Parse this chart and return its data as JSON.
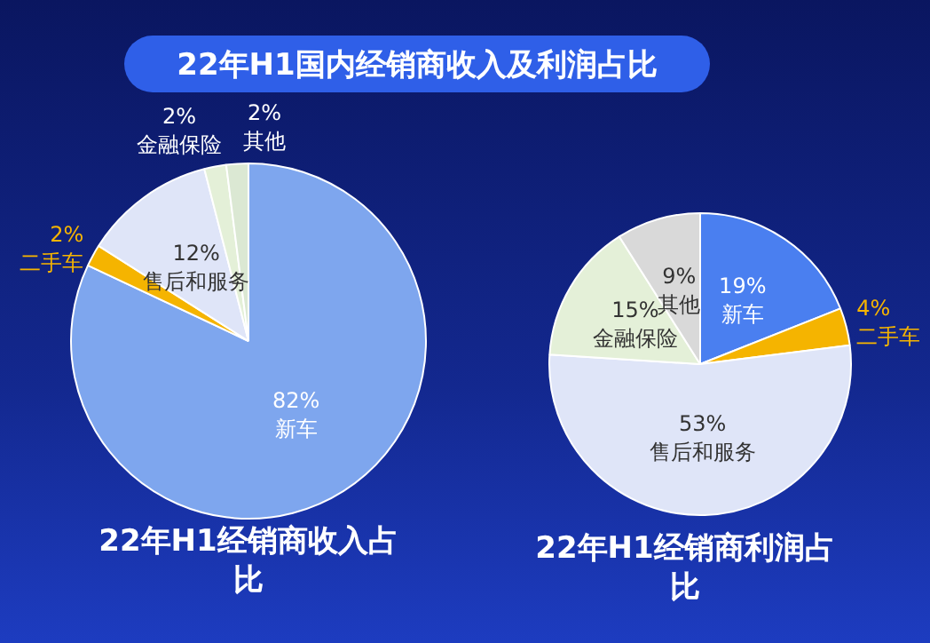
{
  "chart_data": [
    {
      "type": "other",
      "title": "22年H1国内经销商收入及利润占比"
    },
    {
      "type": "pie",
      "title": "22年H1经销商收入占比",
      "categories": [
        "新车",
        "二手车",
        "售后和服务",
        "金融保险",
        "其他"
      ],
      "values": [
        82,
        2,
        12,
        2,
        2
      ],
      "value_labels": [
        "82%",
        "2%",
        "12%",
        "2%",
        "2%"
      ],
      "colors": [
        "#7ea6ee",
        "#f5b400",
        "#dfe5f8",
        "#e4f0d8",
        "#dbe8d3"
      ],
      "legend": false
    },
    {
      "type": "pie",
      "title": "22年H1经销商利润占比",
      "categories": [
        "新车",
        "二手车",
        "售后和服务",
        "金融保险",
        "其他"
      ],
      "values": [
        19,
        4,
        53,
        15,
        9
      ],
      "value_labels": [
        "19%",
        "4%",
        "53%",
        "15%",
        "9%"
      ],
      "colors": [
        "#4a7ff0",
        "#f5b400",
        "#dfe5f8",
        "#e4f0d8",
        "#d9d9d9"
      ],
      "legend": false
    }
  ]
}
